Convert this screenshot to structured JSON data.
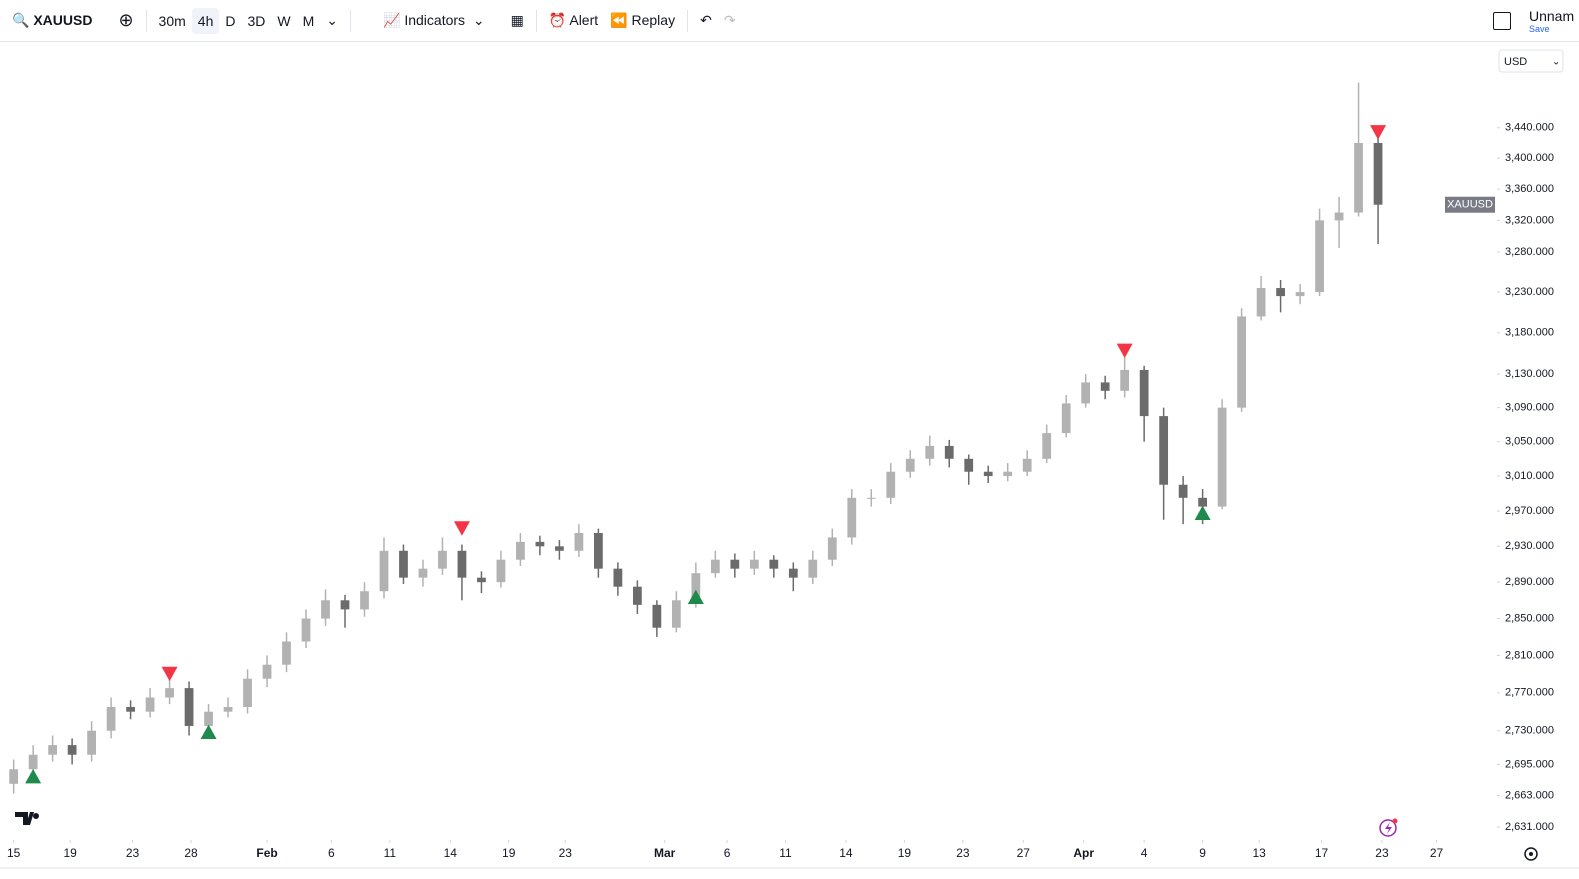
{
  "toolbar": {
    "symbol": "XAUUSD",
    "intervals": [
      "30m",
      "4h",
      "D",
      "3D",
      "W",
      "M"
    ],
    "indicators": "Indicators",
    "alert": "Alert",
    "replay": "Replay",
    "layout_name": "Unnam",
    "save": "Save",
    "currency": "USD"
  },
  "chart_data": {
    "type": "candlestick",
    "log_scale": true,
    "grid": false,
    "last_label": "XAUUSD",
    "up_color": "#b2b2b2",
    "down_color": "#6b6b6b",
    "x": [
      0,
      1,
      2,
      3,
      4,
      5,
      6,
      7,
      8,
      9,
      10,
      11,
      12,
      13,
      14,
      15,
      16,
      17,
      18,
      19,
      20,
      21,
      22,
      23,
      24,
      25,
      26,
      27,
      28,
      29,
      30,
      31,
      32,
      33,
      34,
      35,
      36,
      37,
      38,
      39,
      40,
      41,
      42,
      43,
      44,
      45,
      46,
      47,
      48,
      49,
      50,
      51,
      52,
      53,
      54,
      55,
      56,
      57,
      58,
      59,
      60,
      61,
      62,
      63,
      64,
      65,
      66,
      67,
      68,
      69,
      70
    ],
    "open": [
      2675,
      2690,
      2705,
      2715,
      2705,
      2730,
      2755,
      2750,
      2765,
      2775,
      2735,
      2750,
      2755,
      2785,
      2800,
      2825,
      2850,
      2870,
      2860,
      2880,
      2925,
      2895,
      2905,
      2925,
      2895,
      2890,
      2915,
      2935,
      2930,
      2925,
      2945,
      2905,
      2885,
      2865,
      2840,
      2870,
      2900,
      2915,
      2905,
      2915,
      2905,
      2895,
      2915,
      2940,
      2985,
      2985,
      3015,
      3030,
      3045,
      3030,
      3015,
      3010,
      3015,
      3030,
      3060,
      3095,
      3120,
      3110,
      3135,
      3080,
      3000,
      2985,
      2975,
      3090,
      3200,
      3235,
      3225,
      3230,
      3320,
      3330,
      3420
    ],
    "high": [
      2700,
      2715,
      2725,
      2722,
      2740,
      2765,
      2762,
      2775,
      2790,
      2782,
      2758,
      2765,
      2795,
      2810,
      2835,
      2860,
      2882,
      2876,
      2890,
      2940,
      2932,
      2915,
      2940,
      2932,
      2902,
      2925,
      2945,
      2942,
      2937,
      2955,
      2950,
      2912,
      2892,
      2870,
      2880,
      2912,
      2925,
      2922,
      2925,
      2920,
      2912,
      2925,
      2950,
      2995,
      2995,
      3025,
      3040,
      3057,
      3052,
      3035,
      3022,
      3025,
      3040,
      3070,
      3105,
      3130,
      3128,
      3160,
      3140,
      3090,
      3010,
      2995,
      3100,
      3210,
      3250,
      3245,
      3240,
      3335,
      3350,
      3500,
      3430
    ],
    "low": [
      2665,
      2680,
      2698,
      2695,
      2698,
      2722,
      2742,
      2744,
      2758,
      2725,
      2728,
      2744,
      2748,
      2776,
      2792,
      2818,
      2842,
      2840,
      2852,
      2872,
      2888,
      2885,
      2898,
      2870,
      2878,
      2884,
      2908,
      2920,
      2915,
      2918,
      2895,
      2875,
      2855,
      2830,
      2835,
      2862,
      2895,
      2895,
      2898,
      2895,
      2880,
      2888,
      2908,
      2932,
      2975,
      2978,
      3008,
      3022,
      3020,
      3000,
      3002,
      3004,
      3010,
      3025,
      3055,
      3090,
      3100,
      3102,
      3050,
      2960,
      2955,
      2955,
      2972,
      3085,
      3195,
      3205,
      3215,
      3225,
      3285,
      3325,
      3290
    ],
    "close": [
      2690,
      2705,
      2715,
      2705,
      2730,
      2755,
      2750,
      2765,
      2775,
      2735,
      2750,
      2755,
      2785,
      2800,
      2825,
      2850,
      2870,
      2860,
      2880,
      2925,
      2895,
      2905,
      2925,
      2895,
      2890,
      2915,
      2935,
      2930,
      2925,
      2945,
      2905,
      2885,
      2865,
      2840,
      2870,
      2900,
      2915,
      2905,
      2915,
      2905,
      2895,
      2915,
      2940,
      2985,
      2985,
      3015,
      3030,
      3045,
      3030,
      3015,
      3010,
      3015,
      3030,
      3060,
      3095,
      3120,
      3110,
      3135,
      3080,
      3000,
      2985,
      2975,
      3090,
      3200,
      3235,
      3225,
      3230,
      3320,
      3330,
      3420,
      3340
    ],
    "markers": [
      {
        "shape": "up",
        "color": "#1e8a4c",
        "x": [
          1,
          10,
          35,
          61
        ],
        "y": [
          2682,
          2728,
          2873,
          2967
        ]
      },
      {
        "shape": "down",
        "color": "#f23645",
        "x": [
          8,
          23,
          57,
          70
        ],
        "y": [
          2791,
          2951,
          3159,
          3435
        ]
      }
    ],
    "xlim": [
      -0.7,
      76
    ],
    "ylim": [
      2618,
      3555
    ],
    "xticks": [
      {
        "value": 0,
        "label": "15"
      },
      {
        "value": 2.9,
        "label": "19"
      },
      {
        "value": 6.1,
        "label": "23"
      },
      {
        "value": 9.1,
        "label": "28"
      },
      {
        "value": 13,
        "label": "Feb"
      },
      {
        "value": 16.3,
        "label": "6"
      },
      {
        "value": 19.3,
        "label": "11"
      },
      {
        "value": 22.4,
        "label": "14"
      },
      {
        "value": 25.4,
        "label": "19"
      },
      {
        "value": 28.3,
        "label": "23"
      },
      {
        "value": 33.4,
        "label": "Mar"
      },
      {
        "value": 36.6,
        "label": "6"
      },
      {
        "value": 39.6,
        "label": "11"
      },
      {
        "value": 42.7,
        "label": "14"
      },
      {
        "value": 45.7,
        "label": "19"
      },
      {
        "value": 48.7,
        "label": "23"
      },
      {
        "value": 51.8,
        "label": "27"
      },
      {
        "value": 54.9,
        "label": "Apr"
      },
      {
        "value": 58,
        "label": "4"
      },
      {
        "value": 61,
        "label": "9"
      },
      {
        "value": 63.9,
        "label": "13"
      },
      {
        "value": 67.1,
        "label": "17"
      },
      {
        "value": 70.2,
        "label": "23"
      },
      {
        "value": 73,
        "label": "27"
      }
    ],
    "yticks": [
      {
        "value": 2631,
        "label": "2,631.000"
      },
      {
        "value": 2663,
        "label": "2,663.000"
      },
      {
        "value": 2695,
        "label": "2,695.000"
      },
      {
        "value": 2730,
        "label": "2,730.000"
      },
      {
        "value": 2770,
        "label": "2,770.000"
      },
      {
        "value": 2810,
        "label": "2,810.000"
      },
      {
        "value": 2850,
        "label": "2,850.000"
      },
      {
        "value": 2890,
        "label": "2,890.000"
      },
      {
        "value": 2930,
        "label": "2,930.000"
      },
      {
        "value": 2970,
        "label": "2,970.000"
      },
      {
        "value": 3010,
        "label": "3,010.000"
      },
      {
        "value": 3050,
        "label": "3,050.000"
      },
      {
        "value": 3090,
        "label": "3,090.000"
      },
      {
        "value": 3130,
        "label": "3,130.000"
      },
      {
        "value": 3180,
        "label": "3,180.000"
      },
      {
        "value": 3230,
        "label": "3,230.000"
      },
      {
        "value": 3280,
        "label": "3,280.000"
      },
      {
        "value": 3320,
        "label": "3,320.000"
      },
      {
        "value": 3360,
        "label": "3,360.000"
      },
      {
        "value": 3400,
        "label": "3,400.000"
      },
      {
        "value": 3440,
        "label": "3,440.000"
      }
    ]
  }
}
